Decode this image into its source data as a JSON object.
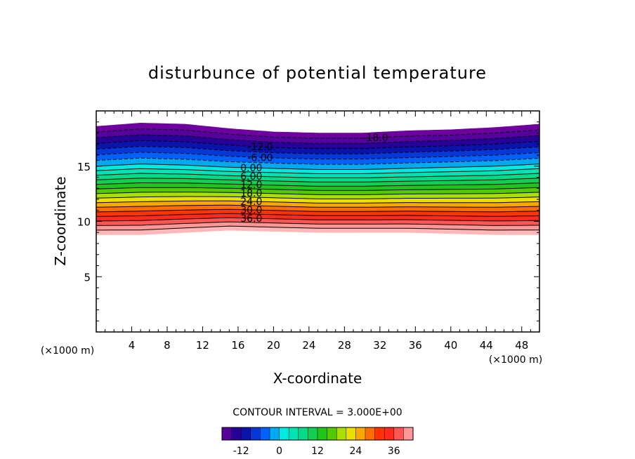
{
  "chart_data": {
    "type": "contour",
    "title": "disturbunce of potential temperature",
    "xlabel": "X-coordinate",
    "ylabel": "Z-coordinate",
    "x_unit": "(×1000 m)",
    "y_unit": "(×1000 m)",
    "xlim": [
      0,
      50
    ],
    "ylim": [
      0,
      20
    ],
    "x_ticks": [
      "4",
      "8",
      "12",
      "16",
      "20",
      "24",
      "28",
      "32",
      "36",
      "40",
      "44",
      "48"
    ],
    "y_ticks": [
      "5",
      "10",
      "15"
    ],
    "contour_interval_label": "CONTOUR INTERVAL = 3.000E+00",
    "contour_labels": [
      {
        "text": "-18.0",
        "level": -18,
        "x": 31.5
      },
      {
        "text": "-12.0",
        "level": -12,
        "x": 18.5
      },
      {
        "text": "-6.00",
        "level": -6,
        "x": 18.5
      },
      {
        "text": "0.00",
        "level": 0,
        "x": 17.5
      },
      {
        "text": "6.00",
        "level": 6,
        "x": 17.5
      },
      {
        "text": "12.0",
        "level": 12,
        "x": 17.5
      },
      {
        "text": "18.0",
        "level": 18,
        "x": 17.5
      },
      {
        "text": "24.0",
        "level": 24,
        "x": 17.5
      },
      {
        "text": "30.0",
        "level": 30,
        "x": 17.5
      },
      {
        "text": "36.0",
        "level": 36,
        "x": 17.5
      }
    ],
    "colorbar": {
      "min": -18,
      "max": 42,
      "interval": 3,
      "ticks": [
        "-12",
        "0",
        "12",
        "24",
        "36"
      ],
      "tick_values": [
        -12,
        0,
        12,
        24,
        36
      ]
    },
    "field": {
      "bottom_level": 45,
      "top_level": -21,
      "x_samples": [
        0,
        5,
        10,
        15,
        20,
        25,
        30,
        35,
        40,
        45,
        50
      ],
      "top_height": [
        18.6,
        18.9,
        18.8,
        18.4,
        18.1,
        18.0,
        18.0,
        18.2,
        18.3,
        18.5,
        18.8
      ],
      "bottom_height": [
        8.8,
        8.8,
        9.0,
        9.2,
        9.1,
        9.0,
        9.0,
        9.0,
        8.9,
        8.8,
        8.8
      ],
      "mid_height": [
        15.0,
        15.2,
        15.1,
        14.9,
        14.8,
        14.7,
        14.7,
        14.8,
        14.9,
        15.0,
        15.2
      ]
    }
  }
}
